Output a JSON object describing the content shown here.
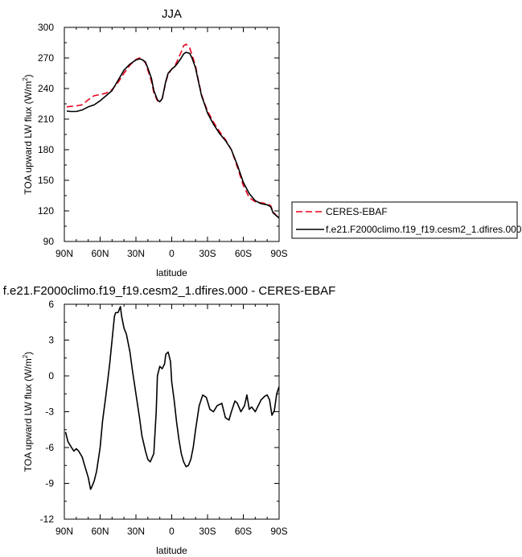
{
  "chart_data": [
    {
      "type": "line",
      "title": "JJA",
      "xlabel": "latitude",
      "ylabel": "TOA upward LW flux (W/m",
      "ylabel_sup": "2",
      "ylabel_end": ")",
      "xlim": [
        90,
        -90
      ],
      "ylim": [
        90,
        300
      ],
      "xticks": [
        90,
        60,
        30,
        0,
        -30,
        -60,
        -90
      ],
      "xtick_labels": [
        "90N",
        "60N",
        "30N",
        "0",
        "30S",
        "60S",
        "90S"
      ],
      "yticks": [
        90,
        120,
        150,
        180,
        210,
        240,
        270,
        300
      ],
      "ytick_labels": [
        "90",
        "120",
        "150",
        "180",
        "210",
        "240",
        "270",
        "300"
      ],
      "legend": "outside-right",
      "x": [
        88,
        85,
        80,
        75,
        70,
        65,
        60,
        55,
        50,
        45,
        40,
        35,
        30,
        27,
        25,
        22,
        20,
        17,
        15,
        12,
        10,
        8,
        5,
        3,
        0,
        -3,
        -5,
        -8,
        -10,
        -12,
        -15,
        -17,
        -20,
        -22,
        -25,
        -28,
        -30,
        -35,
        -40,
        -45,
        -50,
        -55,
        -60,
        -65,
        -70,
        -75,
        -80,
        -83,
        -85,
        -88,
        -90
      ],
      "series": [
        {
          "name": "CERES-EBAF",
          "color": "#e8001c",
          "dash": true,
          "values": [
            222,
            222.5,
            223,
            224,
            229,
            233,
            234,
            235.5,
            239,
            246,
            255,
            263,
            268.5,
            270,
            269.5,
            265,
            258,
            247,
            236,
            228,
            227,
            230,
            246,
            254,
            259,
            263,
            268,
            276,
            282,
            283.5,
            280,
            273,
            262,
            250,
            234,
            224,
            218,
            207,
            198,
            190,
            180,
            163,
            145,
            133,
            129,
            128,
            127,
            125,
            119,
            115,
            114
          ]
        },
        {
          "name": "f.e21.F2000climo.f19_f19.cesm2_1.dfires.000",
          "color": "#000000",
          "dash": false,
          "values": [
            218,
            217.5,
            217.5,
            219,
            222,
            224,
            228,
            233,
            238,
            248,
            258,
            264,
            268,
            269,
            268.5,
            266,
            260,
            250,
            238,
            229,
            227,
            230,
            247,
            255,
            259,
            262,
            265,
            270,
            274,
            275.5,
            274.5,
            270,
            260,
            249,
            233,
            223,
            216,
            205,
            196,
            189,
            180,
            165,
            148,
            137,
            130,
            127,
            126,
            124,
            118,
            115,
            113
          ]
        }
      ]
    },
    {
      "type": "line",
      "title": "f.e21.F2000climo.f19_f19.cesm2_1.dfires.000 - CERES-EBAF",
      "xlabel": "latitude",
      "ylabel": "TOA upward LW flux (W/m",
      "ylabel_sup": "2",
      "ylabel_end": ")",
      "xlim": [
        90,
        -90
      ],
      "ylim": [
        -12,
        6
      ],
      "xticks": [
        90,
        60,
        30,
        0,
        -30,
        -60,
        -90
      ],
      "xtick_labels": [
        "90N",
        "60N",
        "30N",
        "0",
        "30S",
        "60S",
        "90S"
      ],
      "yticks": [
        -12,
        -9,
        -6,
        -3,
        0,
        3,
        6
      ],
      "ytick_labels": [
        "-12",
        "-9",
        "-6",
        "-3",
        "0",
        "3",
        "6"
      ],
      "x": [
        89,
        87,
        84,
        82,
        80,
        78,
        75,
        73,
        70,
        68,
        67,
        65,
        63,
        60,
        58,
        55,
        52,
        50,
        48,
        47,
        45,
        43,
        42,
        40,
        38,
        35,
        33,
        30,
        27,
        25,
        22,
        20,
        18,
        15,
        13,
        12,
        10,
        8,
        6,
        5,
        3,
        1,
        0,
        -2,
        -4,
        -6,
        -8,
        -10,
        -12,
        -14,
        -16,
        -18,
        -20,
        -23,
        -26,
        -29,
        -32,
        -35,
        -38,
        -42,
        -45,
        -48,
        -50,
        -53,
        -55,
        -58,
        -61,
        -63,
        -65,
        -67,
        -70,
        -72,
        -75,
        -78,
        -80,
        -82,
        -84,
        -86,
        -88,
        -90
      ],
      "series": [
        {
          "name": "",
          "color": "#000000",
          "dash": false,
          "values": [
            -4.7,
            -5.5,
            -6,
            -6.3,
            -6.1,
            -6.3,
            -6.8,
            -7.5,
            -8.5,
            -9.5,
            -9.3,
            -8.8,
            -8,
            -6,
            -3.8,
            -1.5,
            1,
            3,
            5,
            5.3,
            5.3,
            5.8,
            5,
            4,
            3.5,
            2,
            0.5,
            -1.5,
            -3.5,
            -5,
            -6.3,
            -7,
            -7.2,
            -6.5,
            -3,
            0,
            0.8,
            0.6,
            1,
            1.8,
            2,
            1.2,
            -0.5,
            -2,
            -3.8,
            -5.3,
            -6.5,
            -7.2,
            -7.6,
            -7.5,
            -7,
            -6,
            -4.5,
            -2.5,
            -1.6,
            -1.8,
            -2.8,
            -3,
            -2.5,
            -2.3,
            -3.5,
            -3.7,
            -3,
            -2.1,
            -2.3,
            -3,
            -2.5,
            -1.6,
            -2.8,
            -2.6,
            -3,
            -2.6,
            -2,
            -1.7,
            -1.6,
            -2,
            -3.3,
            -2.9,
            -1.5,
            -0.9
          ]
        }
      ]
    }
  ]
}
